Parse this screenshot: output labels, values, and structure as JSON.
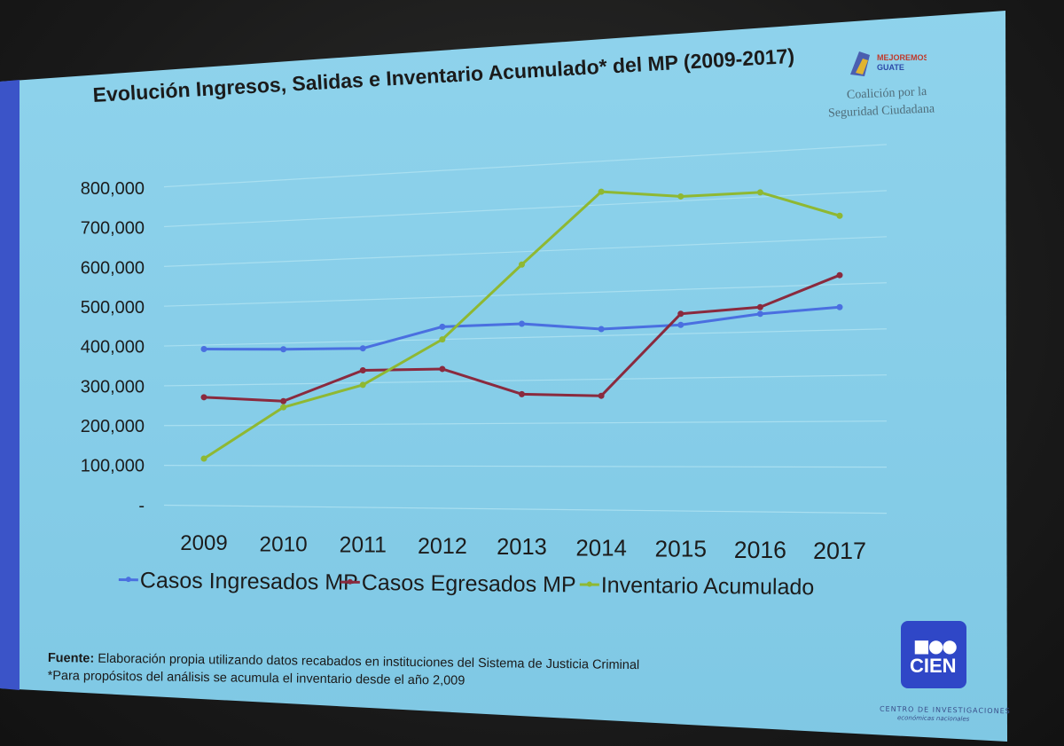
{
  "slide": {
    "title": "Evolución Ingresos, Salidas e Inventario Acumulado* del MP (2009-2017)",
    "org_logo_text": "MEJOREMOS GUATE",
    "org_name_line1": "Coalición por la",
    "org_name_line2": "Seguridad Ciudadana",
    "footnote_source_label": "Fuente:",
    "footnote_source_text": "Elaboración propia utilizando datos recabados en instituciones del Sistema de Justicia Criminal",
    "footnote_note": "*Para propósitos del análisis se acumula el inventario desde el año 2,009",
    "cien_logo_text": "CIEN",
    "cien_sub1": "CENTRO DE INVESTIGACIONES",
    "cien_sub2": "económicas nacionales",
    "colors": {
      "background": "#8fd3ec",
      "accent_bar": "#3b54c8",
      "cien_logo": "#2f47c7"
    }
  },
  "chart_data": {
    "type": "line",
    "title": "Evolución Ingresos, Salidas e Inventario Acumulado* del MP (2009-2017)",
    "categories": [
      "2009",
      "2010",
      "2011",
      "2012",
      "2013",
      "2014",
      "2015",
      "2016",
      "2017"
    ],
    "y_ticks": [
      "-",
      "100,000",
      "200,000",
      "300,000",
      "400,000",
      "500,000",
      "600,000",
      "700,000",
      "800,000"
    ],
    "ylim": [
      0,
      800000
    ],
    "grid": true,
    "legend_position": "bottom",
    "series": [
      {
        "name": "Casos Ingresados MP",
        "color": "#4a6fe0",
        "values": [
          390000,
          385000,
          383000,
          430000,
          432000,
          415000,
          420000,
          440000,
          450000
        ]
      },
      {
        "name": "Casos Egresados MP",
        "color": "#8a2a3e",
        "values": [
          270000,
          258000,
          330000,
          330000,
          268000,
          262000,
          445000,
          455000,
          520000
        ]
      },
      {
        "name": "Inventario Acumulado",
        "color": "#8fb832",
        "values": [
          117000,
          243000,
          295000,
          400000,
          570000,
          730000,
          710000,
          710000,
          650000
        ]
      }
    ]
  }
}
